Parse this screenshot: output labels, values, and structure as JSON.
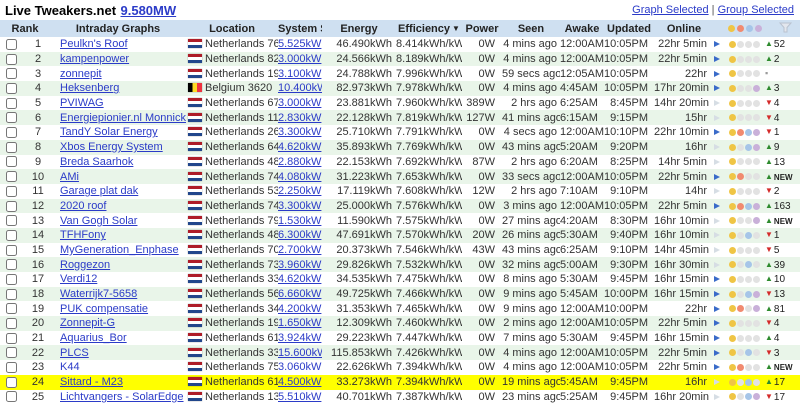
{
  "header": {
    "title": "Live Tweakers.net",
    "total_power": "9.580MW",
    "links": {
      "graph_selected": "Graph Selected",
      "separator": "|",
      "group_selected": "Group Selected"
    }
  },
  "table": {
    "columns": [
      "Rank",
      "Intraday Graphs",
      "Location",
      "System Size",
      "Energy",
      "Efficiency",
      "Power",
      "Seen",
      "Awake",
      "Updated",
      "Online"
    ],
    "sort_indicator": "▼",
    "change_glyphs": {
      "up": "▲",
      "down": "▼",
      "same": "▪"
    },
    "dot_colors": [
      "#efc545",
      "#f18a70",
      "#a6c5e8",
      "#c9b0d9"
    ],
    "dot_off_color": "#e2e2e2",
    "colors": {
      "header_bg": "#cfe0f1",
      "row_alt_bg": "#e9f5e9",
      "highlight_bg": "#ffff00",
      "link": "#2b3bc8",
      "up_green": "#2e8b2e",
      "down_red": "#d42a2a"
    },
    "rows": [
      {
        "rank": "1",
        "name": "Peulkn's Roof",
        "flag": "nl",
        "location": "Netherlands 7666",
        "size": "5.525kW",
        "energy": "46.490kWh",
        "efficiency": "8.414kWh/kW",
        "power": "0W",
        "seen": "4 mins ago",
        "awake": "12:00AM",
        "updated": "10:05PM",
        "online": "22hr 5min",
        "play": "blue",
        "dots": [
          1,
          0,
          0,
          0
        ],
        "change": {
          "dir": "up",
          "value": "52"
        }
      },
      {
        "rank": "2",
        "name": "kampenpower",
        "flag": "nl",
        "location": "Netherlands 8265",
        "size": "3.000kW",
        "energy": "24.566kWh",
        "efficiency": "8.189kWh/kW",
        "power": "0W",
        "seen": "4 mins ago",
        "awake": "12:00AM",
        "updated": "10:05PM",
        "online": "22hr 5min",
        "play": "blue",
        "dots": [
          1,
          0,
          0,
          0
        ],
        "change": {
          "dir": "up",
          "value": "2"
        }
      },
      {
        "rank": "3",
        "name": "zonnepit",
        "flag": "nl",
        "location": "Netherlands 1964",
        "size": "3.100kW",
        "energy": "24.788kWh",
        "efficiency": "7.996kWh/kW",
        "power": "0W",
        "seen": "59 secs ago",
        "awake": "12:05AM",
        "updated": "10:05PM",
        "online": "22hr",
        "play": "blue",
        "dots": [
          1,
          0,
          0,
          0
        ],
        "change": {
          "dir": "same",
          "value": ""
        }
      },
      {
        "rank": "4",
        "name": "Heksenberg",
        "flag": "be",
        "location": "Belgium 3620",
        "size": "10.400kW",
        "energy": "82.973kWh",
        "efficiency": "7.978kWh/kW",
        "power": "0W",
        "seen": "4 mins ago",
        "awake": "4:45AM",
        "updated": "10:05PM",
        "online": "17hr 20min",
        "play": "blue",
        "dots": [
          1,
          0,
          0,
          1
        ],
        "change": {
          "dir": "up",
          "value": "3"
        }
      },
      {
        "rank": "5",
        "name": "PVIWAG",
        "flag": "nl",
        "location": "Netherlands 6703",
        "size": "3.000kW",
        "energy": "23.881kWh",
        "efficiency": "7.960kWh/kW",
        "power": "389W",
        "seen": "2 hrs ago",
        "awake": "6:25AM",
        "updated": "8:45PM",
        "online": "14hr 20min",
        "play": "dim",
        "dots": [
          1,
          0,
          0,
          0
        ],
        "change": {
          "dir": "down",
          "value": "4"
        }
      },
      {
        "rank": "6",
        "name": "Energiepionier.nl Monnickendam",
        "flag": "nl",
        "location": "Netherlands 1141",
        "size": "2.830kW",
        "energy": "22.128kWh",
        "efficiency": "7.819kWh/kW",
        "power": "127W",
        "seen": "41 mins ago",
        "awake": "6:15AM",
        "updated": "9:15PM",
        "online": "15hr",
        "play": "dim",
        "dots": [
          1,
          0,
          0,
          0
        ],
        "change": {
          "dir": "down",
          "value": "4"
        }
      },
      {
        "rank": "7",
        "name": "TandY Solar Energy",
        "flag": "nl",
        "location": "Netherlands 2652",
        "size": "3.300kW",
        "energy": "25.710kWh",
        "efficiency": "7.791kWh/kW",
        "power": "0W",
        "seen": "4 secs ago",
        "awake": "12:00AM",
        "updated": "10:10PM",
        "online": "22hr 10min",
        "play": "blue",
        "dots": [
          1,
          1,
          1,
          1
        ],
        "change": {
          "dir": "down",
          "value": "1"
        }
      },
      {
        "rank": "8",
        "name": "Xbos Energy System",
        "flag": "nl",
        "location": "Netherlands 6411",
        "size": "4.620kW",
        "energy": "35.893kWh",
        "efficiency": "7.769kWh/kW",
        "power": "0W",
        "seen": "43 mins ago",
        "awake": "5:20AM",
        "updated": "9:20PM",
        "online": "16hr",
        "play": "dim",
        "dots": [
          1,
          0,
          1,
          1
        ],
        "change": {
          "dir": "up",
          "value": "9"
        }
      },
      {
        "rank": "9",
        "name": "Breda Saarhok",
        "flag": "nl",
        "location": "Netherlands 4817",
        "size": "2.880kW",
        "energy": "22.153kWh",
        "efficiency": "7.692kWh/kW",
        "power": "87W",
        "seen": "2 hrs ago",
        "awake": "6:20AM",
        "updated": "8:25PM",
        "online": "14hr 5min",
        "play": "dim",
        "dots": [
          1,
          0,
          0,
          0
        ],
        "change": {
          "dir": "up",
          "value": "13"
        }
      },
      {
        "rank": "10",
        "name": "AMi",
        "flag": "nl",
        "location": "Netherlands 7421",
        "size": "4.080kW",
        "energy": "31.223kWh",
        "efficiency": "7.653kWh/kW",
        "power": "0W",
        "seen": "33 secs ago",
        "awake": "12:00AM",
        "updated": "10:05PM",
        "online": "22hr 5min",
        "play": "blue",
        "dots": [
          1,
          1,
          0,
          0
        ],
        "change": {
          "dir": "up",
          "value": "NEW"
        }
      },
      {
        "rank": "11",
        "name": "Garage plat dak",
        "flag": "nl",
        "location": "Netherlands 5396",
        "size": "2.250kW",
        "energy": "17.119kWh",
        "efficiency": "7.608kWh/kW",
        "power": "12W",
        "seen": "2 hrs ago",
        "awake": "7:10AM",
        "updated": "9:10PM",
        "online": "14hr",
        "play": "dim",
        "dots": [
          1,
          0,
          0,
          0
        ],
        "change": {
          "dir": "down",
          "value": "2"
        }
      },
      {
        "rank": "12",
        "name": "2020 roof",
        "flag": "nl",
        "location": "Netherlands 7411",
        "size": "3.300kW",
        "energy": "25.000kWh",
        "efficiency": "7.576kWh/kW",
        "power": "0W",
        "seen": "3 mins ago",
        "awake": "12:00AM",
        "updated": "10:05PM",
        "online": "22hr 5min",
        "play": "blue",
        "dots": [
          1,
          1,
          1,
          1
        ],
        "change": {
          "dir": "up",
          "value": "163"
        }
      },
      {
        "rank": "13",
        "name": "Van Gogh Solar",
        "flag": "nl",
        "location": "Netherlands 7901",
        "size": "1.530kW",
        "energy": "11.590kWh",
        "efficiency": "7.575kWh/kW",
        "power": "0W",
        "seen": "27 mins ago",
        "awake": "4:20AM",
        "updated": "8:30PM",
        "online": "16hr 10min",
        "play": "dim",
        "dots": [
          1,
          0,
          0,
          1
        ],
        "change": {
          "dir": "up",
          "value": "NEW"
        }
      },
      {
        "rank": "14",
        "name": "TFHFony",
        "flag": "nl",
        "location": "Netherlands 4854",
        "size": "6.300kW",
        "energy": "47.691kWh",
        "efficiency": "7.570kWh/kW",
        "power": "20W",
        "seen": "26 mins ago",
        "awake": "5:30AM",
        "updated": "9:40PM",
        "online": "16hr 10min",
        "play": "dim",
        "dots": [
          1,
          0,
          1,
          0
        ],
        "change": {
          "dir": "down",
          "value": "1"
        }
      },
      {
        "rank": "15",
        "name": "MyGeneration_Enphase",
        "flag": "nl",
        "location": "Netherlands 7061",
        "size": "2.700kW",
        "energy": "20.373kWh",
        "efficiency": "7.546kWh/kW",
        "power": "43W",
        "seen": "43 mins ago",
        "awake": "6:25AM",
        "updated": "9:10PM",
        "online": "14hr 45min",
        "play": "dim",
        "dots": [
          1,
          0,
          0,
          0
        ],
        "change": {
          "dir": "down",
          "value": "5"
        }
      },
      {
        "rank": "16",
        "name": "Roggezon",
        "flag": "nl",
        "location": "Netherlands 7311",
        "size": "3.960kW",
        "energy": "29.826kWh",
        "efficiency": "7.532kWh/kW",
        "power": "0W",
        "seen": "32 mins ago",
        "awake": "5:00AM",
        "updated": "9:30PM",
        "online": "16hr 30min",
        "play": "dim",
        "dots": [
          1,
          0,
          1,
          0
        ],
        "change": {
          "dir": "up",
          "value": "39"
        }
      },
      {
        "rank": "17",
        "name": "Verdi12",
        "flag": "nl",
        "location": "Netherlands 3363",
        "size": "4.620kW",
        "energy": "34.535kWh",
        "efficiency": "7.475kWh/kW",
        "power": "0W",
        "seen": "8 mins ago",
        "awake": "5:30AM",
        "updated": "9:45PM",
        "online": "16hr 15min",
        "play": "blue",
        "dots": [
          1,
          0,
          0,
          0
        ],
        "change": {
          "dir": "up",
          "value": "10"
        }
      },
      {
        "rank": "18",
        "name": "Waterrijk7-5658",
        "flag": "nl",
        "location": "Netherlands 5658",
        "size": "6.660kW",
        "energy": "49.725kWh",
        "efficiency": "7.466kWh/kW",
        "power": "0W",
        "seen": "9 mins ago",
        "awake": "5:45AM",
        "updated": "10:00PM",
        "online": "16hr 15min",
        "play": "blue",
        "dots": [
          1,
          0,
          1,
          1
        ],
        "change": {
          "dir": "down",
          "value": "13"
        }
      },
      {
        "rank": "19",
        "name": "PUK compensatie",
        "flag": "nl",
        "location": "Netherlands 3438",
        "size": "4.200kW",
        "energy": "31.353kWh",
        "efficiency": "7.465kWh/kW",
        "power": "0W",
        "seen": "9 mins ago",
        "awake": "12:00AM",
        "updated": "10:00PM",
        "online": "22hr",
        "play": "blue",
        "dots": [
          1,
          1,
          0,
          1
        ],
        "change": {
          "dir": "up",
          "value": "81"
        }
      },
      {
        "rank": "20",
        "name": "Zonnepit-G",
        "flag": "nl",
        "location": "Netherlands 1964",
        "size": "1.650kW",
        "energy": "12.309kWh",
        "efficiency": "7.460kWh/kW",
        "power": "0W",
        "seen": "2 mins ago",
        "awake": "12:00AM",
        "updated": "10:05PM",
        "online": "22hr 5min",
        "play": "blue",
        "dots": [
          1,
          0,
          0,
          0
        ],
        "change": {
          "dir": "down",
          "value": "4"
        }
      },
      {
        "rank": "21",
        "name": "Aquarius_Bor",
        "flag": "nl",
        "location": "Netherlands 6121",
        "size": "3.924kW",
        "energy": "29.223kWh",
        "efficiency": "7.447kWh/kW",
        "power": "0W",
        "seen": "7 mins ago",
        "awake": "5:30AM",
        "updated": "9:45PM",
        "online": "16hr 15min",
        "play": "blue",
        "dots": [
          1,
          0,
          0,
          0
        ],
        "change": {
          "dir": "up",
          "value": "4"
        }
      },
      {
        "rank": "22",
        "name": "PLCS",
        "flag": "nl",
        "location": "Netherlands 3342",
        "size": "15.600kW",
        "energy": "115.853kWh",
        "efficiency": "7.426kWh/kW",
        "power": "0W",
        "seen": "4 mins ago",
        "awake": "12:00AM",
        "updated": "10:05PM",
        "online": "22hr 5min",
        "play": "blue",
        "dots": [
          1,
          0,
          1,
          0
        ],
        "change": {
          "dir": "down",
          "value": "3"
        }
      },
      {
        "rank": "23",
        "name": "K44",
        "flag": "nl",
        "location": "Netherlands 7522",
        "size": "3.060kW",
        "energy": "22.626kWh",
        "efficiency": "7.394kWh/kW",
        "power": "0W",
        "seen": "4 mins ago",
        "awake": "12:00AM",
        "updated": "10:05PM",
        "online": "22hr 5min",
        "play": "blue",
        "dots": [
          1,
          1,
          0,
          0
        ],
        "change": {
          "dir": "up",
          "value": "NEW"
        },
        "plain": true
      },
      {
        "rank": "24",
        "name": "Sittard - M23",
        "flag": "nl",
        "location": "Netherlands 6151",
        "size": "4.500kW",
        "energy": "33.273kWh",
        "efficiency": "7.394kWh/kW",
        "power": "0W",
        "seen": "19 mins ago",
        "awake": "5:45AM",
        "updated": "9:45PM",
        "online": "16hr",
        "play": "dim",
        "dots": [
          1,
          0,
          1,
          0
        ],
        "change": {
          "dir": "up",
          "value": "17"
        },
        "highlight": true
      },
      {
        "rank": "25",
        "name": "Lichtvangers - SolarEdge",
        "flag": "nl",
        "location": "Netherlands 1335",
        "size": "5.510kW",
        "energy": "40.701kWh",
        "efficiency": "7.387kWh/kW",
        "power": "0W",
        "seen": "23 mins ago",
        "awake": "5:25AM",
        "updated": "9:45PM",
        "online": "16hr 20min",
        "play": "dim",
        "dots": [
          1,
          0,
          1,
          1
        ],
        "change": {
          "dir": "down",
          "value": "17"
        }
      }
    ]
  }
}
